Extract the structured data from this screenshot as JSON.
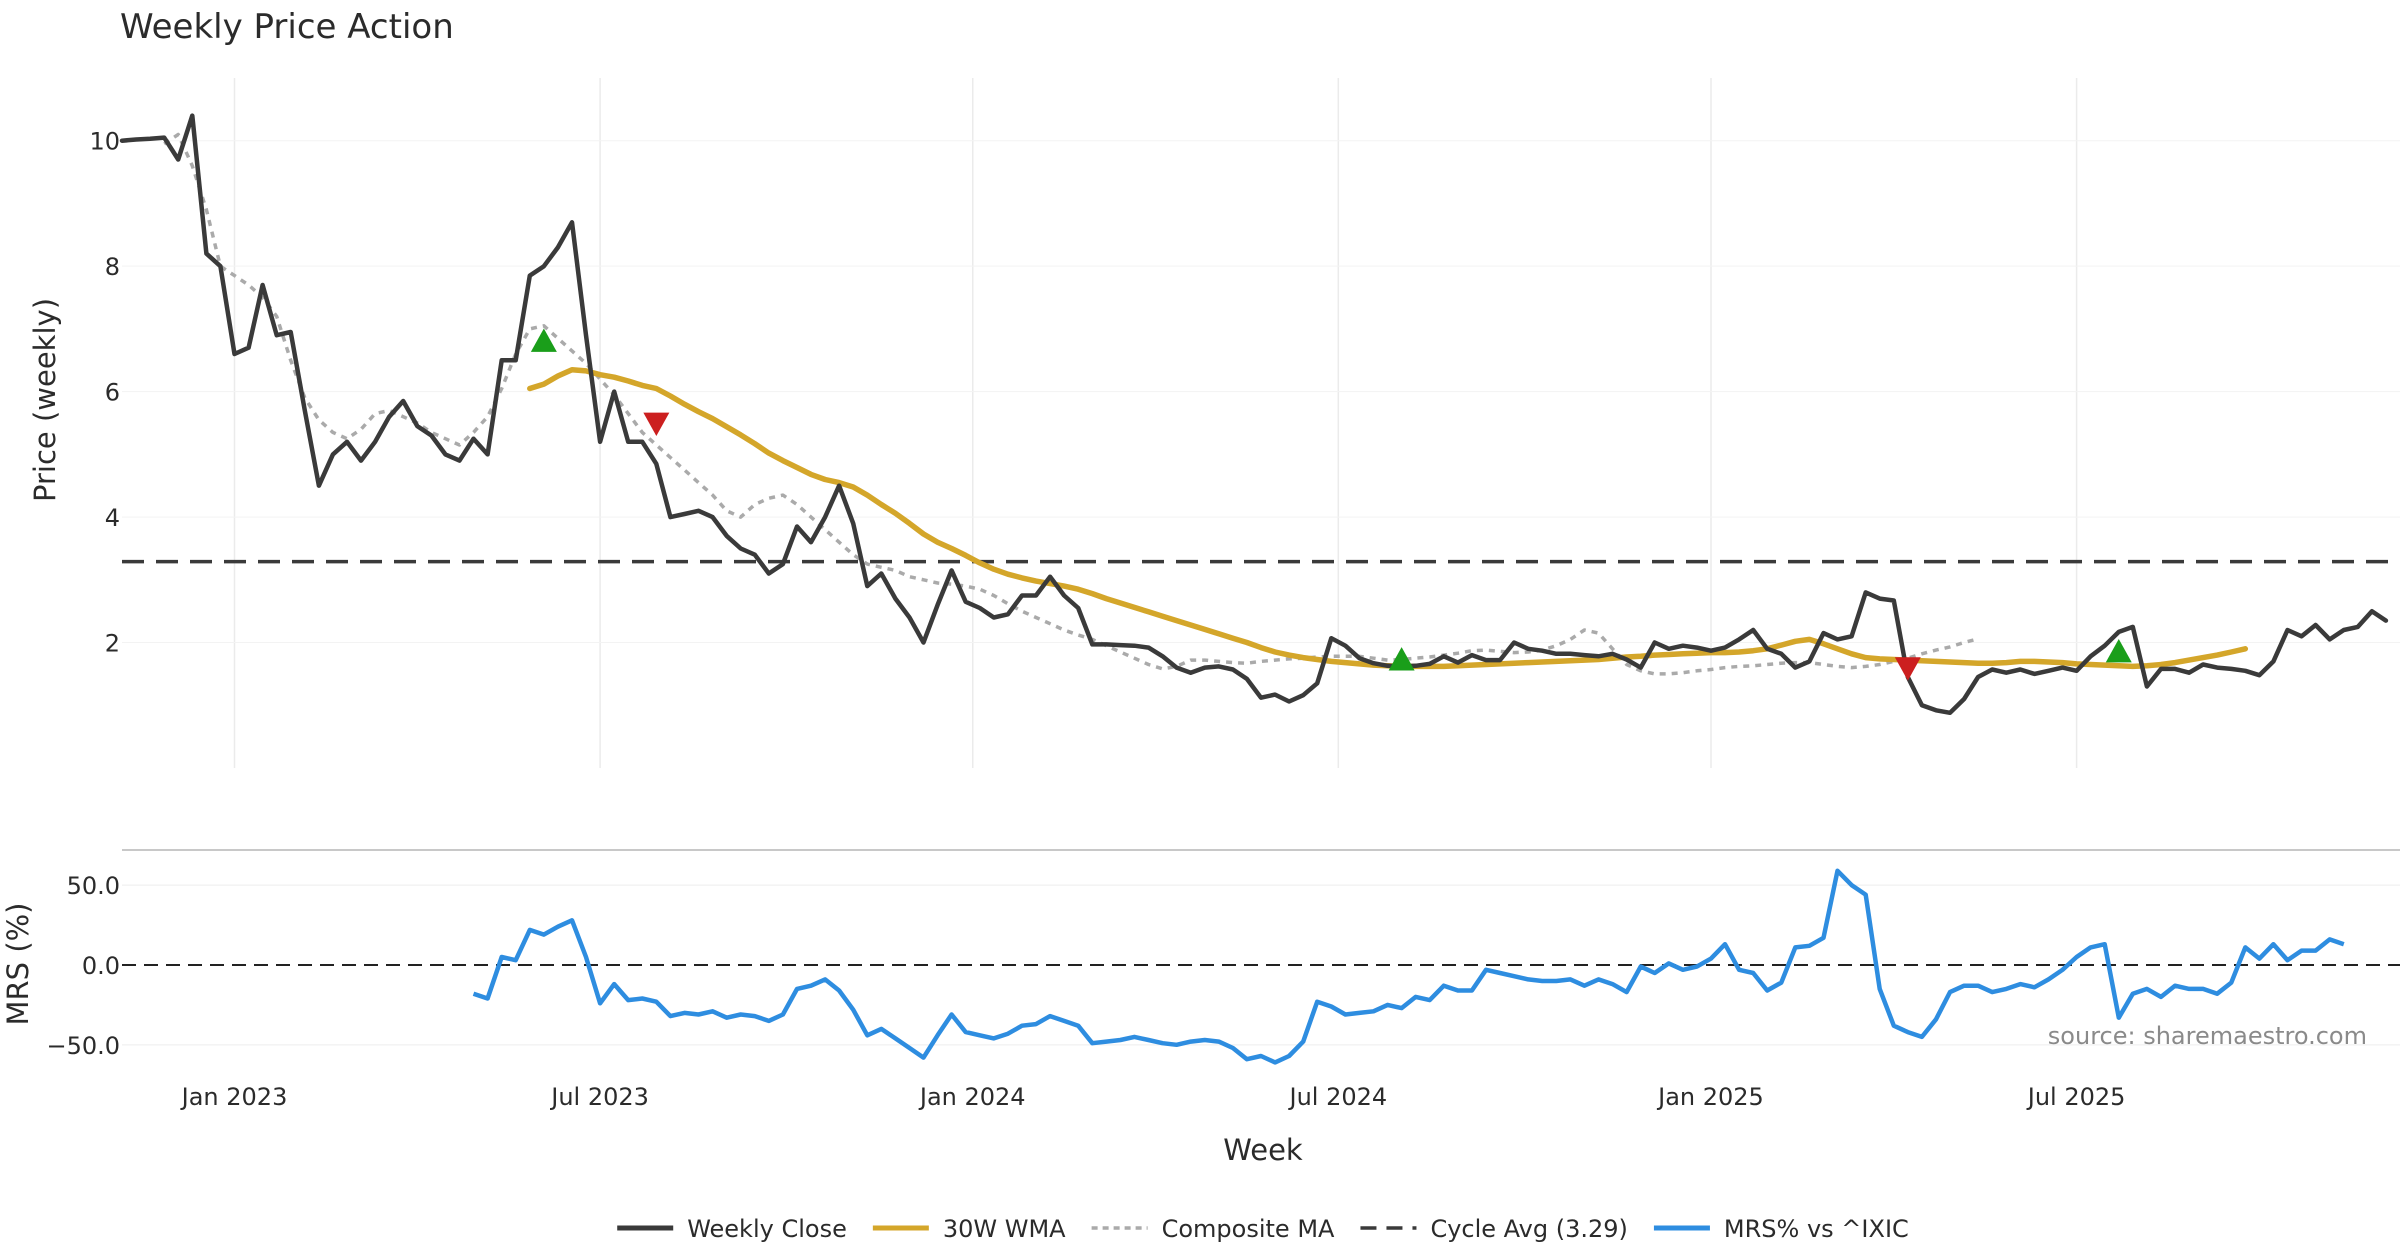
{
  "chart_data": [
    {
      "id": "price",
      "type": "line",
      "title": "Weekly Price Action",
      "ylabel": "Price (weekly)",
      "xlabel": "",
      "ylim": [
        0.0,
        11.0
      ],
      "yticks": [
        2,
        4,
        6,
        8,
        10
      ],
      "cycle_avg": 3.29,
      "series": [
        {
          "name": "Weekly Close",
          "color": "#3a3a3a",
          "start_week": 0,
          "values": [
            10.0,
            10.02,
            10.03,
            10.05,
            9.7,
            10.4,
            8.2,
            8.0,
            6.6,
            6.7,
            7.7,
            6.9,
            6.95,
            5.7,
            4.5,
            5.0,
            5.2,
            4.9,
            5.2,
            5.6,
            5.85,
            5.45,
            5.3,
            5.0,
            4.9,
            5.25,
            5.0,
            6.5,
            6.5,
            7.85,
            8.0,
            8.3,
            8.7,
            6.9,
            5.2,
            6.0,
            5.2,
            5.2,
            4.85,
            4.0,
            4.05,
            4.1,
            4.0,
            3.7,
            3.5,
            3.4,
            3.1,
            3.25,
            3.85,
            3.6,
            4.0,
            4.5,
            3.9,
            2.9,
            3.1,
            2.7,
            2.4,
            2.0,
            2.6,
            3.15,
            2.65,
            2.55,
            2.4,
            2.45,
            2.75,
            2.75,
            3.05,
            2.75,
            2.55,
            1.97,
            1.97,
            1.96,
            1.95,
            1.92,
            1.78,
            1.6,
            1.52,
            1.6,
            1.62,
            1.57,
            1.42,
            1.12,
            1.17,
            1.06,
            1.16,
            1.35,
            2.07,
            1.95,
            1.75,
            1.67,
            1.63,
            1.62,
            1.63,
            1.66,
            1.78,
            1.68,
            1.8,
            1.72,
            1.72,
            2.0,
            1.9,
            1.87,
            1.82,
            1.82,
            1.8,
            1.78,
            1.82,
            1.73,
            1.6,
            2.0,
            1.9,
            1.95,
            1.92,
            1.87,
            1.92,
            2.05,
            2.2,
            1.9,
            1.82,
            1.6,
            1.7,
            2.15,
            2.05,
            2.1,
            2.8,
            2.7,
            2.67,
            1.45,
            1.0,
            0.92,
            0.88,
            1.1,
            1.45,
            1.57,
            1.52,
            1.57,
            1.5,
            1.55,
            1.6,
            1.55,
            1.78,
            1.95,
            2.17,
            2.25,
            1.3,
            1.58,
            1.58,
            1.52,
            1.65,
            1.6,
            1.58,
            1.55,
            1.48,
            1.7,
            2.2,
            2.1,
            2.28,
            2.05,
            2.2,
            2.25,
            2.5,
            2.35
          ]
        },
        {
          "name": "30W WMA",
          "color": "#d4a62a",
          "start_week": 29,
          "values": [
            6.05,
            6.12,
            6.25,
            6.35,
            6.33,
            6.27,
            6.23,
            6.17,
            6.1,
            6.05,
            5.93,
            5.8,
            5.68,
            5.57,
            5.44,
            5.31,
            5.17,
            5.02,
            4.9,
            4.79,
            4.68,
            4.6,
            4.55,
            4.48,
            4.35,
            4.2,
            4.06,
            3.9,
            3.73,
            3.6,
            3.5,
            3.39,
            3.27,
            3.17,
            3.09,
            3.03,
            2.98,
            2.94,
            2.9,
            2.85,
            2.78,
            2.7,
            2.63,
            2.56,
            2.49,
            2.42,
            2.35,
            2.28,
            2.21,
            2.14,
            2.07,
            2.0,
            1.92,
            1.85,
            1.8,
            1.76,
            1.73,
            1.7,
            1.68,
            1.66,
            1.64,
            1.63,
            1.62,
            1.62,
            1.62,
            1.62,
            1.63,
            1.64,
            1.65,
            1.66,
            1.67,
            1.68,
            1.69,
            1.7,
            1.71,
            1.72,
            1.73,
            1.75,
            1.77,
            1.78,
            1.8,
            1.81,
            1.82,
            1.83,
            1.84,
            1.84,
            1.85,
            1.87,
            1.9,
            1.96,
            2.02,
            2.05,
            1.98,
            1.9,
            1.82,
            1.76,
            1.74,
            1.73,
            1.72,
            1.71,
            1.7,
            1.69,
            1.68,
            1.67,
            1.67,
            1.68,
            1.7,
            1.7,
            1.69,
            1.68,
            1.66,
            1.65,
            1.64,
            1.63,
            1.62,
            1.63,
            1.65,
            1.68,
            1.72,
            1.76,
            1.8,
            1.85,
            1.9
          ]
        },
        {
          "name": "Composite MA",
          "color": "#aaaaaa",
          "start_week": 3,
          "values": [
            9.95,
            10.1,
            9.6,
            8.9,
            8.0,
            7.85,
            7.7,
            7.5,
            7.2,
            6.5,
            5.9,
            5.55,
            5.35,
            5.25,
            5.4,
            5.65,
            5.7,
            5.6,
            5.5,
            5.35,
            5.25,
            5.15,
            5.35,
            5.6,
            6.05,
            6.6,
            7.0,
            7.05,
            6.85,
            6.65,
            6.45,
            6.2,
            5.95,
            5.65,
            5.35,
            5.15,
            4.95,
            4.75,
            4.55,
            4.35,
            4.1,
            4.0,
            4.2,
            4.3,
            4.35,
            4.2,
            4.0,
            3.8,
            3.6,
            3.4,
            3.25,
            3.2,
            3.15,
            3.05,
            3.0,
            2.95,
            2.93,
            2.9,
            2.85,
            2.75,
            2.62,
            2.5,
            2.4,
            2.3,
            2.2,
            2.12,
            2.05,
            1.95,
            1.85,
            1.75,
            1.65,
            1.58,
            1.62,
            1.72,
            1.72,
            1.7,
            1.68,
            1.67,
            1.7,
            1.72,
            1.74,
            1.75,
            1.77,
            1.78,
            1.78,
            1.78,
            1.75,
            1.72,
            1.73,
            1.75,
            1.77,
            1.8,
            1.83,
            1.87,
            1.88,
            1.86,
            1.84,
            1.85,
            1.88,
            1.95,
            2.05,
            2.2,
            2.15,
            1.9,
            1.65,
            1.55,
            1.5,
            1.5,
            1.52,
            1.55,
            1.57,
            1.6,
            1.62,
            1.63,
            1.65,
            1.67,
            1.68,
            1.68,
            1.65,
            1.62,
            1.6,
            1.62,
            1.65,
            1.7,
            1.75,
            1.82,
            1.88,
            1.93,
            2.0,
            2.06
          ]
        }
      ],
      "markers": [
        {
          "type": "buy",
          "week": 30,
          "value": 6.8,
          "color": "#1a9e1a"
        },
        {
          "type": "sell",
          "week": 38,
          "value": 5.5,
          "color": "#cc1f1f"
        },
        {
          "type": "buy",
          "week": 91,
          "value": 1.72,
          "color": "#1a9e1a"
        },
        {
          "type": "sell",
          "week": 127,
          "value": 1.6,
          "color": "#cc1f1f"
        },
        {
          "type": "buy",
          "week": 142,
          "value": 1.85,
          "color": "#1a9e1a"
        }
      ]
    },
    {
      "id": "mrs",
      "type": "line",
      "ylabel": "MRS (%)",
      "xlabel": "Week",
      "ylim": [
        -62.0,
        72.0
      ],
      "ytick_values": [
        50,
        0,
        -50
      ],
      "ytick_labels": [
        "50.0",
        "0.0",
        "−50.0"
      ],
      "series": [
        {
          "name": "MRS% vs ^IXIC",
          "color": "#2e8de0",
          "start_week": 25,
          "values": [
            -18,
            -21,
            5,
            3,
            22,
            19,
            24,
            28,
            5,
            -24,
            -12,
            -22,
            -21,
            -23,
            -32,
            -30,
            -31,
            -29,
            -33,
            -31,
            -32,
            -35,
            -31,
            -15,
            -13,
            -9,
            -16,
            -28,
            -44,
            -40,
            -46,
            -52,
            -58,
            -44,
            -31,
            -42,
            -44,
            -46,
            -43,
            -38,
            -37,
            -32,
            -35,
            -38,
            -49,
            -48,
            -47,
            -45,
            -47,
            -49,
            -50,
            -48,
            -47,
            -48,
            -52,
            -59,
            -57,
            -61,
            -57,
            -48,
            -23,
            -26,
            -31,
            -30,
            -29,
            -25,
            -27,
            -20,
            -22,
            -13,
            -16,
            -16,
            -3,
            -5,
            -7,
            -9,
            -10,
            -10,
            -9,
            -13,
            -9,
            -12,
            -17,
            -1,
            -5,
            1,
            -3,
            -1,
            4,
            13,
            -3,
            -5,
            -16,
            -11,
            11,
            12,
            17,
            59,
            50,
            44,
            -15,
            -38,
            -42,
            -45,
            -34,
            -17,
            -13,
            -13,
            -17,
            -15,
            -12,
            -14,
            -9,
            -3,
            5,
            11,
            13,
            -33,
            -18,
            -15,
            -20,
            -13,
            -15,
            -15,
            -18,
            -11,
            11,
            4,
            13,
            3,
            9,
            9,
            16,
            13
          ]
        }
      ],
      "source": "source: sharemaestro.com"
    }
  ],
  "xaxis": {
    "weeks_total": 162,
    "ticks": [
      {
        "label": "Jan 2023",
        "week": 8
      },
      {
        "label": "Jul 2023",
        "week": 34
      },
      {
        "label": "Jan 2024",
        "week": 60.5
      },
      {
        "label": "Jul 2024",
        "week": 86.5
      },
      {
        "label": "Jan 2025",
        "week": 113
      },
      {
        "label": "Jul 2025",
        "week": 139
      }
    ]
  },
  "legend": [
    {
      "label": "Weekly Close",
      "style": "solid",
      "color": "#3a3a3a"
    },
    {
      "label": "30W WMA",
      "style": "solid",
      "color": "#d4a62a"
    },
    {
      "label": "Composite MA",
      "style": "dotted",
      "color": "#aaaaaa"
    },
    {
      "label": "Cycle Avg (3.29)",
      "style": "dashed",
      "color": "#3a3a3a"
    },
    {
      "label": "MRS% vs ^IXIC",
      "style": "solid",
      "color": "#2e8de0"
    }
  ]
}
